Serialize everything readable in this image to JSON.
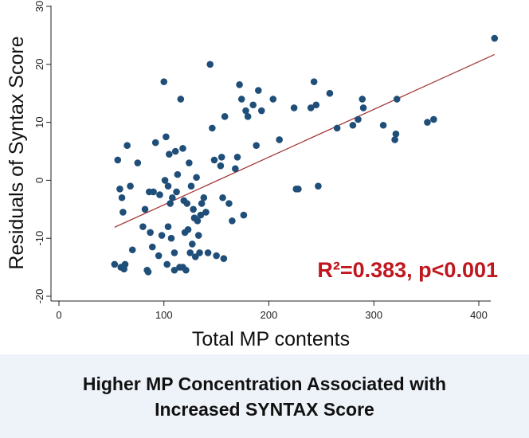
{
  "chart_data": {
    "type": "scatter",
    "title": "",
    "xlabel": "Total MP contents",
    "ylabel": "Residuals of Syntax Score",
    "xlim": [
      -10,
      420
    ],
    "ylim": [
      -21,
      31
    ],
    "xticks": [
      0,
      100,
      200,
      300,
      400
    ],
    "yticks": [
      -20,
      -10,
      0,
      10,
      20,
      30
    ],
    "grid": false,
    "colors": {
      "points": "#1f4e79",
      "fit_line": "#a53b3b",
      "annotation": "#c0171f"
    },
    "points": {
      "x": [
        53,
        56,
        58,
        59,
        60,
        61,
        62,
        63,
        65,
        68,
        70,
        75,
        80,
        82,
        84,
        85,
        86,
        87,
        89,
        90,
        92,
        95,
        96,
        98,
        100,
        101,
        102,
        103,
        104,
        104,
        105,
        106,
        107,
        108,
        110,
        110,
        111,
        112,
        113,
        115,
        116,
        118,
        118,
        119,
        120,
        121,
        122,
        123,
        124,
        125,
        126,
        127,
        128,
        129,
        130,
        131,
        132,
        133,
        134,
        135,
        136,
        138,
        140,
        142,
        144,
        146,
        148,
        150,
        154,
        155,
        156,
        157,
        158,
        162,
        165,
        168,
        170,
        172,
        174,
        176,
        178,
        180,
        185,
        188,
        190,
        193,
        204,
        210,
        224,
        226,
        228,
        240,
        243,
        245,
        247,
        258,
        265,
        280,
        285,
        289,
        290,
        309,
        320,
        321,
        322,
        351,
        357,
        415
      ],
      "y": [
        -14.5,
        3.5,
        -1.5,
        -15,
        -3,
        -5.5,
        -15.3,
        -14.5,
        6,
        -1,
        -12,
        3,
        -8,
        -5,
        -15.5,
        -15.8,
        -2,
        -9,
        -11.5,
        -2,
        6.5,
        -13,
        -2.5,
        -9.5,
        17,
        0,
        7.5,
        -14.5,
        -1,
        -8,
        4.5,
        -4,
        -10,
        -3,
        -15.5,
        -12.5,
        5,
        -2,
        1,
        -15,
        14,
        -15,
        5.5,
        -3.5,
        -9,
        -15.5,
        -4,
        -8.5,
        3,
        -12.5,
        -1,
        -11,
        -5,
        -6.5,
        -13.2,
        0.5,
        -7,
        -9.5,
        -12.5,
        -6,
        -4,
        -3,
        -5.5,
        -12.5,
        20,
        9,
        3.5,
        -13,
        2.5,
        4,
        -3,
        -13.5,
        11,
        -4,
        -7,
        2,
        4,
        16.5,
        14,
        -6,
        12,
        11,
        13,
        6,
        15.5,
        12,
        14,
        7,
        12.5,
        -1.5,
        -1.5,
        12.5,
        17,
        13,
        -1,
        15,
        9,
        9.5,
        10.5,
        14,
        12.5,
        9.5,
        7,
        8,
        14,
        10,
        10.5,
        24.5
      ]
    },
    "fit_line": {
      "x": [
        53,
        415
      ],
      "y": [
        -8.1,
        21.7
      ]
    },
    "annotation": "R²=0.383, p<0.001"
  },
  "caption": {
    "line1": "Higher MP Concentration Associated with",
    "line2": "Increased SYNTAX Score"
  }
}
